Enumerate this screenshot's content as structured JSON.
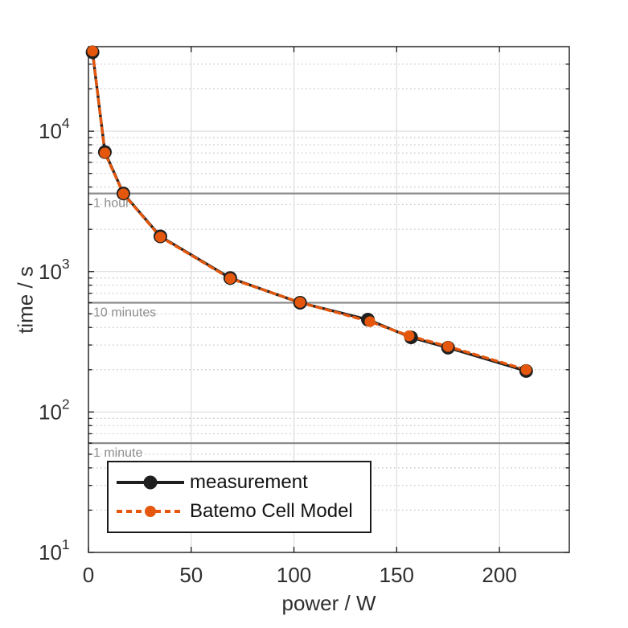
{
  "chart_data": {
    "type": "line",
    "title": "",
    "xlabel": "power / W",
    "ylabel": "time / s",
    "x_axis": {
      "scale": "linear",
      "min": 0,
      "max": 234,
      "ticks": [
        0,
        50,
        100,
        150,
        200
      ]
    },
    "y_axis": {
      "scale": "log",
      "min": 10,
      "max": 40000,
      "ticks": [
        {
          "value": 10,
          "base": "10",
          "exp": "1"
        },
        {
          "value": 100,
          "base": "10",
          "exp": "2"
        },
        {
          "value": 1000,
          "base": "10",
          "exp": "3"
        },
        {
          "value": 10000,
          "base": "10",
          "exp": "4"
        }
      ],
      "minor_multipliers": [
        2,
        3,
        4,
        5,
        6,
        7,
        8,
        9
      ]
    },
    "grid": {
      "major": true,
      "minor": true
    },
    "reference_lines": [
      {
        "value": 3600,
        "label": "1 hour"
      },
      {
        "value": 600,
        "label": "10 minutes"
      },
      {
        "value": 60,
        "label": "1 minute"
      }
    ],
    "series": [
      {
        "name": "measurement",
        "color": "#1f1f1f",
        "line_style": "solid",
        "marker": "filled-circle",
        "points": [
          [
            2,
            36500
          ],
          [
            8,
            7100
          ],
          [
            17,
            3600
          ],
          [
            35,
            1780
          ],
          [
            69,
            900
          ],
          [
            103,
            600
          ],
          [
            136,
            455
          ],
          [
            157,
            340
          ],
          [
            175,
            287
          ],
          [
            213,
            196
          ]
        ]
      },
      {
        "name": "Batemo Cell Model",
        "color": "#E4570D",
        "line_style": "dashed",
        "marker": "filled-circle",
        "points": [
          [
            2,
            37200
          ],
          [
            8,
            7000
          ],
          [
            17,
            3580
          ],
          [
            35,
            1765
          ],
          [
            69,
            893
          ],
          [
            103,
            603
          ],
          [
            137,
            440
          ],
          [
            156,
            349
          ],
          [
            175,
            293
          ],
          [
            213,
            200
          ]
        ]
      }
    ],
    "legend": {
      "position": "southwest"
    }
  },
  "style": {
    "background": "#ffffff",
    "axis_color": "#1a1a1a",
    "tick_label_color": "#2f2f2f",
    "grid_major_color": "#d9d9d9",
    "grid_minor_color": "#c4c4c4",
    "reference_line_color": "#8c8c8c",
    "reference_label_color": "#8f8f8f",
    "legend_text_color": "#121212"
  }
}
